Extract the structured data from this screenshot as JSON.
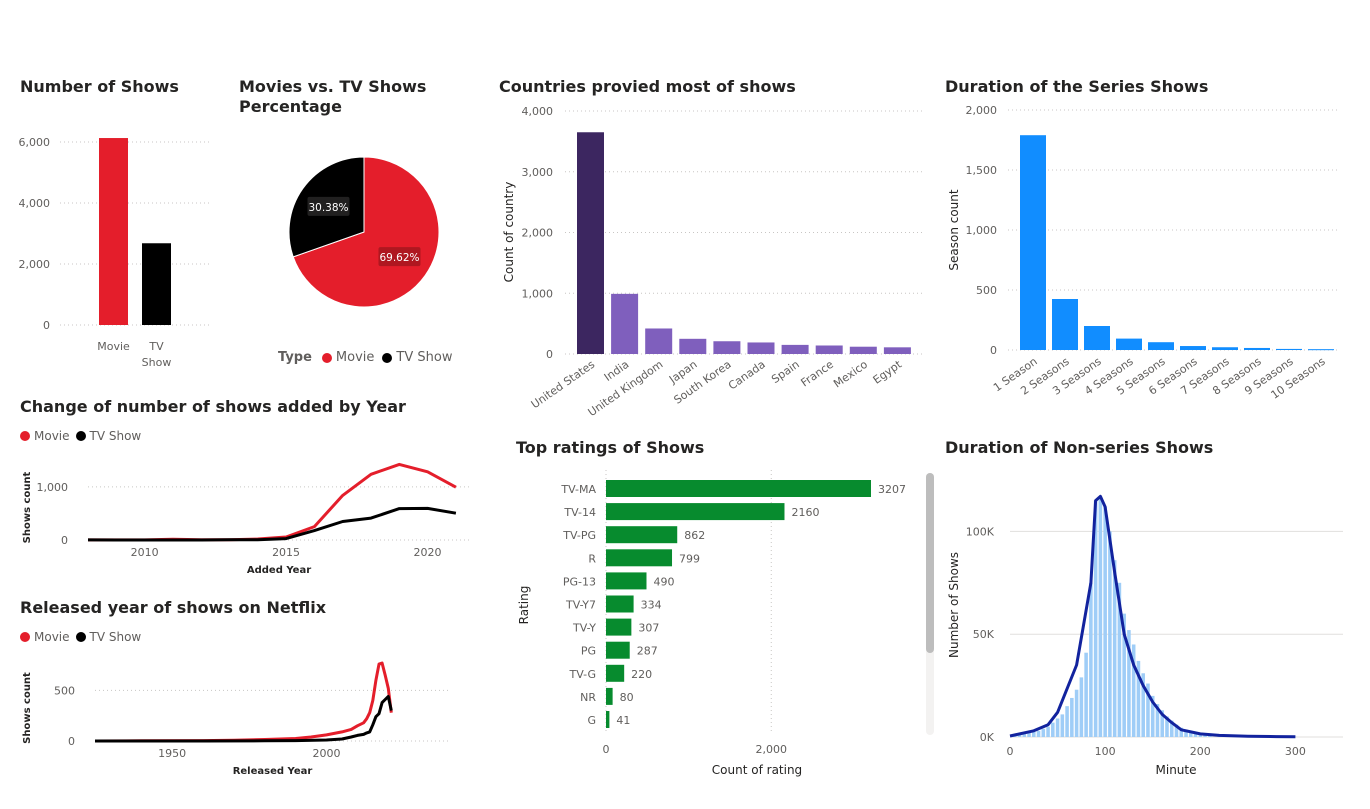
{
  "colors": {
    "movie": "#e41e2b",
    "tv": "#000000",
    "country_top": "#3c2660",
    "country": "#7f5fbd",
    "series": "#118dff",
    "rating": "#078b2e",
    "hist": "#9fcdf7",
    "hist_line": "#12239e"
  },
  "chart_data": [
    {
      "id": "shows",
      "type": "bar",
      "title": "Number of Shows",
      "categories": [
        "Movie",
        "TV Show"
      ],
      "category_lines": [
        [
          "Movie"
        ],
        [
          "TV",
          "Show"
        ]
      ],
      "values": [
        6130,
        2680
      ],
      "ylim": [
        0,
        6000
      ],
      "yticks": [
        0,
        2000,
        4000,
        6000
      ],
      "ytick_labels": [
        "0",
        "2,000",
        "4,000",
        "6,000"
      ]
    },
    {
      "id": "pie",
      "type": "pie",
      "title": "Movies vs. TV Shows Percentage",
      "labels": [
        "Movie",
        "TV Show"
      ],
      "values": [
        69.62,
        30.38
      ],
      "value_labels": [
        "69.62%",
        "30.38%"
      ],
      "legend_title": "Type",
      "legend": [
        "Movie",
        "TV Show"
      ]
    },
    {
      "id": "countries",
      "type": "bar",
      "title": "Countries provied most of shows",
      "ylabel": "Count of country",
      "categories": [
        "United States",
        "India",
        "United Kingdom",
        "Japan",
        "South Korea",
        "Canada",
        "Spain",
        "France",
        "Mexico",
        "Egypt"
      ],
      "values": [
        3650,
        990,
        420,
        250,
        210,
        190,
        150,
        140,
        120,
        110
      ],
      "ylim": [
        0,
        4000
      ],
      "yticks": [
        0,
        1000,
        2000,
        3000,
        4000
      ],
      "ytick_labels": [
        "0",
        "1,000",
        "2,000",
        "3,000",
        "4,000"
      ]
    },
    {
      "id": "seasons",
      "type": "bar",
      "title": "Duration of the Series Shows",
      "ylabel": "Season count",
      "categories": [
        "1 Season",
        "2 Seasons",
        "3 Seasons",
        "4 Seasons",
        "5 Seasons",
        "6 Seasons",
        "7 Seasons",
        "8 Seasons",
        "9 Seasons",
        "10 Seasons"
      ],
      "values": [
        1790,
        425,
        200,
        95,
        65,
        33,
        23,
        17,
        9,
        7
      ],
      "ylim": [
        0,
        2000
      ],
      "yticks": [
        0,
        500,
        1000,
        1500,
        2000
      ],
      "ytick_labels": [
        "0",
        "500",
        "1,000",
        "1,500",
        "2,000"
      ]
    },
    {
      "id": "added",
      "type": "line",
      "title": "Change of number of shows added by Year",
      "xlabel": "Added Year",
      "ylabel": "Shows count",
      "legend": [
        "Movie",
        "TV Show"
      ],
      "series": [
        {
          "name": "Movie",
          "x": [
            2008,
            2009,
            2010,
            2011,
            2012,
            2013,
            2014,
            2015,
            2016,
            2017,
            2018,
            2019,
            2020,
            2021
          ],
          "y": [
            1,
            2,
            1,
            13,
            3,
            6,
            19,
            56,
            253,
            839,
            1237,
            1424,
            1284,
            993
          ]
        },
        {
          "name": "TV Show",
          "x": [
            2008,
            2009,
            2010,
            2011,
            2012,
            2013,
            2014,
            2015,
            2016,
            2017,
            2018,
            2019,
            2020,
            2021
          ],
          "y": [
            1,
            0,
            0,
            0,
            0,
            5,
            5,
            26,
            176,
            349,
            412,
            592,
            595,
            505
          ]
        }
      ],
      "xlim": [
        2008,
        2021.5
      ],
      "ylim": [
        0,
        1600
      ],
      "xticks": [
        2010,
        2015,
        2020
      ],
      "yticks": [
        0,
        1000
      ],
      "ytick_labels": [
        "0",
        "1,000"
      ]
    },
    {
      "id": "released",
      "type": "line",
      "title": "Released year of shows on Netflix",
      "xlabel": "Released Year",
      "ylabel": "Shows count",
      "legend": [
        "Movie",
        "TV Show"
      ],
      "series": [
        {
          "name": "Movie",
          "x": [
            1925,
            1940,
            1960,
            1970,
            1980,
            1990,
            1995,
            2000,
            2005,
            2008,
            2010,
            2012,
            2013,
            2014,
            2015,
            2016,
            2017,
            2018,
            2019,
            2020,
            2021
          ],
          "y": [
            0,
            2,
            4,
            8,
            15,
            25,
            40,
            60,
            90,
            115,
            150,
            180,
            220,
            280,
            400,
            600,
            760,
            770,
            650,
            520,
            280
          ]
        },
        {
          "name": "TV Show",
          "x": [
            1925,
            1960,
            1980,
            1990,
            2000,
            2005,
            2008,
            2010,
            2012,
            2013,
            2014,
            2015,
            2016,
            2017,
            2018,
            2019,
            2020,
            2021
          ],
          "y": [
            0,
            0,
            2,
            4,
            10,
            20,
            40,
            55,
            65,
            80,
            90,
            160,
            240,
            270,
            380,
            410,
            440,
            300
          ]
        }
      ],
      "xlim": [
        1925,
        2040
      ],
      "ylim": [
        0,
        850
      ],
      "xticks": [
        1950,
        2000
      ],
      "yticks": [
        0,
        500
      ],
      "ytick_labels": [
        "0",
        "500"
      ]
    },
    {
      "id": "ratings",
      "type": "bar",
      "orientation": "horizontal",
      "title": "Top ratings of Shows",
      "xlabel": "Count of rating",
      "ylabel": "Rating",
      "categories": [
        "TV-MA",
        "TV-14",
        "TV-PG",
        "R",
        "PG-13",
        "TV-Y7",
        "TV-Y",
        "PG",
        "TV-G",
        "NR",
        "G"
      ],
      "values": [
        3207,
        2160,
        862,
        799,
        490,
        334,
        307,
        287,
        220,
        80,
        41
      ],
      "value_labels": [
        "3207",
        "2160",
        "862",
        "799",
        "490",
        "334",
        "307",
        "287",
        "220",
        "80",
        "41"
      ],
      "xlim": [
        0,
        3207
      ],
      "xticks": [
        0,
        2000
      ],
      "xtick_labels": [
        "0",
        "2,000"
      ]
    },
    {
      "id": "minutes",
      "type": "bar",
      "title": "Duration of Non-series Shows",
      "xlabel": "Minute",
      "ylabel": "Number of Shows",
      "x": [
        5,
        10,
        15,
        20,
        25,
        30,
        35,
        40,
        45,
        50,
        55,
        60,
        65,
        70,
        75,
        80,
        85,
        90,
        95,
        100,
        105,
        110,
        115,
        120,
        125,
        130,
        135,
        140,
        145,
        150,
        155,
        160,
        165,
        170,
        175,
        180,
        185,
        190,
        195,
        200,
        205,
        210,
        220,
        230,
        240,
        250,
        260,
        270,
        280,
        290,
        300
      ],
      "values": [
        500,
        1000,
        1500,
        2000,
        2500,
        3000,
        4000,
        5000,
        7000,
        9000,
        11000,
        15000,
        19000,
        23000,
        29000,
        41000,
        75000,
        115000,
        117000,
        112000,
        100000,
        86000,
        75000,
        60000,
        52000,
        45000,
        37000,
        31000,
        26000,
        20000,
        16000,
        13000,
        10000,
        8000,
        6000,
        4500,
        3500,
        2500,
        2000,
        1500,
        1200,
        900,
        700,
        500,
        400,
        300,
        200,
        150,
        100,
        80,
        60
      ],
      "line_x": [
        0,
        25,
        40,
        50,
        70,
        85,
        90,
        95,
        100,
        110,
        120,
        130,
        140,
        150,
        160,
        170,
        180,
        200,
        220,
        250,
        280,
        300
      ],
      "line_y": [
        500,
        3000,
        6000,
        12000,
        35000,
        75000,
        115000,
        117000,
        112000,
        80000,
        50000,
        35000,
        25000,
        17000,
        11000,
        7000,
        3500,
        1500,
        800,
        400,
        200,
        100
      ],
      "xlim": [
        0,
        350
      ],
      "ylim": [
        0,
        125000
      ],
      "xticks": [
        0,
        100,
        200,
        300
      ],
      "yticks": [
        0,
        50000,
        100000
      ],
      "ytick_labels": [
        "0K",
        "50K",
        "100K"
      ]
    }
  ]
}
